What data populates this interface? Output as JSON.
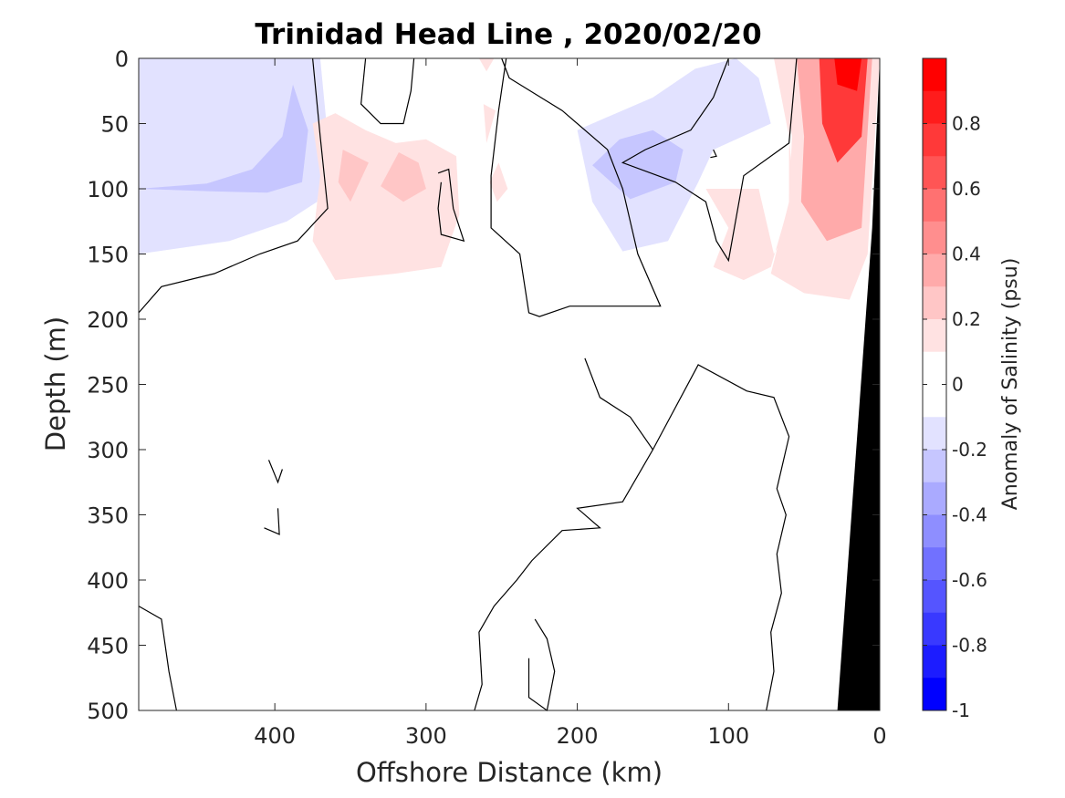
{
  "chart_data": {
    "type": "heatmap",
    "title": "Trinidad Head Line , 2020/02/20",
    "xlabel": "Offshore Distance (km)",
    "ylabel": "Depth (m)",
    "xlim": [
      490,
      0
    ],
    "ylim": [
      0,
      500
    ],
    "x_reversed": true,
    "y_reversed": true,
    "x_ticks": [
      400,
      300,
      200,
      100,
      0
    ],
    "x_tick_labels": [
      "400",
      "300",
      "200",
      "100",
      "0"
    ],
    "y_ticks": [
      0,
      50,
      100,
      150,
      200,
      250,
      300,
      350,
      400,
      450,
      500
    ],
    "y_tick_labels": [
      "0",
      "50",
      "100",
      "150",
      "200",
      "250",
      "300",
      "350",
      "400",
      "450",
      "500"
    ],
    "colorbar": {
      "label": "Anomaly of Salinity (psu)",
      "range": [
        -1,
        1
      ],
      "ticks": [
        0.8,
        0.6,
        0.4,
        0.2,
        0,
        -0.2,
        -0.4,
        -0.6,
        -0.8,
        -1
      ],
      "tick_labels": [
        "0.8",
        "0.6",
        "0.4",
        "0.2",
        "0",
        "-0.2",
        "-0.4",
        "-0.6",
        "-0.8",
        "-1"
      ],
      "levels": [
        {
          "from": 0.9,
          "to": 1.0,
          "color": "#ff0000"
        },
        {
          "from": 0.8,
          "to": 0.9,
          "color": "#ff1c1c"
        },
        {
          "from": 0.7,
          "to": 0.8,
          "color": "#ff3939"
        },
        {
          "from": 0.6,
          "to": 0.7,
          "color": "#ff5555"
        },
        {
          "from": 0.5,
          "to": 0.6,
          "color": "#ff7171"
        },
        {
          "from": 0.4,
          "to": 0.5,
          "color": "#ff8e8e"
        },
        {
          "from": 0.3,
          "to": 0.4,
          "color": "#ffaaaa"
        },
        {
          "from": 0.2,
          "to": 0.3,
          "color": "#ffc6c6"
        },
        {
          "from": 0.1,
          "to": 0.2,
          "color": "#ffe2e2"
        },
        {
          "from": 0.0,
          "to": 0.1,
          "color": "#ffffff"
        },
        {
          "from": -0.1,
          "to": 0.0,
          "color": "#ffffff"
        },
        {
          "from": -0.2,
          "to": -0.1,
          "color": "#e2e2ff"
        },
        {
          "from": -0.3,
          "to": -0.2,
          "color": "#c6c6ff"
        },
        {
          "from": -0.4,
          "to": -0.3,
          "color": "#aaaaff"
        },
        {
          "from": -0.5,
          "to": -0.4,
          "color": "#8e8eff"
        },
        {
          "from": -0.6,
          "to": -0.5,
          "color": "#7171ff"
        },
        {
          "from": -0.7,
          "to": -0.6,
          "color": "#5555ff"
        },
        {
          "from": -0.8,
          "to": -0.7,
          "color": "#3939ff"
        },
        {
          "from": -0.9,
          "to": -0.8,
          "color": "#1c1cff"
        },
        {
          "from": -1.0,
          "to": -0.9,
          "color": "#0000ff"
        }
      ]
    },
    "regions": [
      {
        "name": "offshore-fresh-anomaly",
        "value": -0.15,
        "points": [
          [
            490,
            0
          ],
          [
            370,
            0
          ],
          [
            365,
            60
          ],
          [
            372,
            110
          ],
          [
            392,
            125
          ],
          [
            430,
            140
          ],
          [
            490,
            150
          ]
        ]
      },
      {
        "name": "offshore-fresh-core",
        "value": -0.25,
        "points": [
          [
            490,
            100
          ],
          [
            445,
            96
          ],
          [
            415,
            85
          ],
          [
            395,
            60
          ],
          [
            388,
            20
          ],
          [
            378,
            55
          ],
          [
            382,
            95
          ],
          [
            405,
            103
          ],
          [
            440,
            102
          ]
        ]
      },
      {
        "name": "offshore-fresh-center",
        "value": -0.3,
        "points": [
          [
            408,
            90
          ],
          [
            398,
            92
          ],
          [
            405,
            100
          ]
        ]
      },
      {
        "name": "midshelf-salty-anomaly",
        "value": 0.15,
        "points": [
          [
            375,
            50
          ],
          [
            360,
            42
          ],
          [
            340,
            55
          ],
          [
            320,
            65
          ],
          [
            300,
            62
          ],
          [
            280,
            75
          ],
          [
            278,
            120
          ],
          [
            290,
            160
          ],
          [
            320,
            165
          ],
          [
            360,
            170
          ],
          [
            375,
            140
          ],
          [
            370,
            90
          ]
        ]
      },
      {
        "name": "midshelf-salty-core-a",
        "value": 0.2,
        "points": [
          [
            355,
            70
          ],
          [
            338,
            80
          ],
          [
            350,
            110
          ],
          [
            358,
            95
          ]
        ]
      },
      {
        "name": "midshelf-salty-core-b",
        "value": 0.2,
        "points": [
          [
            318,
            72
          ],
          [
            305,
            80
          ],
          [
            300,
            100
          ],
          [
            315,
            110
          ],
          [
            330,
            98
          ]
        ]
      },
      {
        "name": "midshelf-salty-blip-a",
        "value": 0.15,
        "points": [
          [
            265,
            0
          ],
          [
            255,
            0
          ],
          [
            260,
            10
          ]
        ]
      },
      {
        "name": "midshelf-salty-blip-b",
        "value": 0.15,
        "points": [
          [
            262,
            35
          ],
          [
            254,
            40
          ],
          [
            260,
            65
          ]
        ]
      },
      {
        "name": "midshelf-salty-blip-c",
        "value": 0.15,
        "points": [
          [
            252,
            80
          ],
          [
            246,
            100
          ],
          [
            253,
            110
          ],
          [
            258,
            95
          ]
        ]
      },
      {
        "name": "central-fresh-anomaly",
        "value": -0.15,
        "points": [
          [
            200,
            55
          ],
          [
            180,
            45
          ],
          [
            150,
            30
          ],
          [
            122,
            8
          ],
          [
            95,
            0
          ],
          [
            80,
            15
          ],
          [
            72,
            50
          ],
          [
            110,
            70
          ],
          [
            120,
            95
          ],
          [
            140,
            140
          ],
          [
            170,
            148
          ],
          [
            190,
            110
          ]
        ]
      },
      {
        "name": "central-fresh-core",
        "value": -0.25,
        "points": [
          [
            190,
            82
          ],
          [
            172,
            62
          ],
          [
            150,
            55
          ],
          [
            130,
            70
          ],
          [
            135,
            95
          ],
          [
            165,
            108
          ]
        ]
      },
      {
        "name": "central-fresh-center",
        "value": -0.3,
        "points": [
          [
            178,
            78
          ],
          [
            162,
            65
          ],
          [
            143,
            62
          ],
          [
            138,
            80
          ],
          [
            158,
            93
          ]
        ]
      },
      {
        "name": "inshore-salty-anomaly",
        "value": 0.15,
        "points": [
          [
            70,
            0
          ],
          [
            60,
            60
          ],
          [
            57,
            100
          ],
          [
            72,
            160
          ],
          [
            90,
            170
          ],
          [
            110,
            160
          ],
          [
            100,
            130
          ],
          [
            115,
            100
          ],
          [
            80,
            100
          ],
          [
            70,
            150
          ],
          [
            60,
            130
          ],
          [
            60,
            70
          ],
          [
            55,
            0
          ]
        ]
      },
      {
        "name": "nearshore-salty-band",
        "value": 0.15,
        "points": [
          [
            65,
            0
          ],
          [
            58,
            60
          ],
          [
            60,
            110
          ],
          [
            72,
            165
          ],
          [
            50,
            180
          ],
          [
            20,
            185
          ],
          [
            8,
            150
          ],
          [
            0,
            0
          ]
        ]
      },
      {
        "name": "nearshore-salty-mid",
        "value": 0.35,
        "points": [
          [
            55,
            0
          ],
          [
            50,
            60
          ],
          [
            52,
            110
          ],
          [
            35,
            140
          ],
          [
            12,
            130
          ],
          [
            5,
            0
          ]
        ]
      },
      {
        "name": "nearshore-salty-core",
        "value": 0.75,
        "points": [
          [
            40,
            0
          ],
          [
            38,
            50
          ],
          [
            28,
            80
          ],
          [
            12,
            60
          ],
          [
            8,
            0
          ]
        ]
      },
      {
        "name": "nearshore-salty-peak",
        "value": 0.95,
        "points": [
          [
            30,
            0
          ],
          [
            28,
            20
          ],
          [
            15,
            25
          ],
          [
            12,
            0
          ]
        ]
      }
    ],
    "zero_contours": [
      [
        [
          490,
          195
        ],
        [
          475,
          175
        ],
        [
          440,
          165
        ],
        [
          410,
          150
        ],
        [
          385,
          140
        ],
        [
          365,
          115
        ],
        [
          370,
          60
        ],
        [
          375,
          0
        ]
      ],
      [
        [
          340,
          0
        ],
        [
          343,
          35
        ],
        [
          330,
          50
        ],
        [
          315,
          50
        ],
        [
          310,
          25
        ],
        [
          308,
          0
        ]
      ],
      [
        [
          292,
          88
        ],
        [
          285,
          85
        ],
        [
          282,
          115
        ],
        [
          275,
          140
        ],
        [
          290,
          135
        ],
        [
          292,
          115
        ],
        [
          290,
          95
        ]
      ],
      [
        [
          247,
          0
        ],
        [
          252,
          40
        ],
        [
          257,
          90
        ],
        [
          257,
          130
        ],
        [
          238,
          150
        ],
        [
          232,
          195
        ],
        [
          225,
          198
        ],
        [
          205,
          190
        ],
        [
          145,
          190
        ],
        [
          160,
          150
        ],
        [
          170,
          100
        ],
        [
          180,
          70
        ],
        [
          210,
          40
        ],
        [
          245,
          15
        ],
        [
          250,
          0
        ]
      ],
      [
        [
          100,
          0
        ],
        [
          110,
          30
        ],
        [
          125,
          55
        ],
        [
          155,
          70
        ],
        [
          170,
          80
        ],
        [
          135,
          95
        ],
        [
          115,
          110
        ],
        [
          108,
          140
        ],
        [
          100,
          155
        ],
        [
          90,
          90
        ],
        [
          60,
          65
        ],
        [
          55,
          0
        ]
      ],
      [
        [
          110,
          70
        ],
        [
          108,
          75
        ],
        [
          112,
          76
        ]
      ],
      [
        [
          195,
          230
        ],
        [
          185,
          260
        ],
        [
          165,
          275
        ],
        [
          150,
          300
        ],
        [
          170,
          340
        ],
        [
          200,
          345
        ],
        [
          185,
          360
        ],
        [
          210,
          362
        ],
        [
          230,
          385
        ],
        [
          240,
          400
        ],
        [
          255,
          420
        ],
        [
          265,
          440
        ],
        [
          263,
          480
        ],
        [
          268,
          500
        ]
      ],
      [
        [
          150,
          300
        ],
        [
          120,
          235
        ],
        [
          88,
          255
        ],
        [
          70,
          260
        ],
        [
          60,
          290
        ],
        [
          68,
          330
        ],
        [
          62,
          350
        ],
        [
          68,
          380
        ],
        [
          65,
          410
        ],
        [
          72,
          440
        ],
        [
          70,
          470
        ],
        [
          75,
          500
        ]
      ],
      [
        [
          395,
          315
        ],
        [
          398,
          325
        ],
        [
          404,
          308
        ]
      ],
      [
        [
          398,
          345
        ],
        [
          397,
          365
        ],
        [
          407,
          360
        ]
      ],
      [
        [
          490,
          420
        ],
        [
          475,
          430
        ],
        [
          470,
          470
        ],
        [
          465,
          500
        ]
      ],
      [
        [
          228,
          430
        ],
        [
          220,
          445
        ],
        [
          215,
          470
        ],
        [
          220,
          500
        ],
        [
          232,
          490
        ],
        [
          232,
          460
        ]
      ]
    ],
    "land_polygon": [
      [
        0,
        0
      ],
      [
        0,
        500
      ],
      [
        28,
        500
      ],
      [
        5,
        130
      ]
    ]
  }
}
